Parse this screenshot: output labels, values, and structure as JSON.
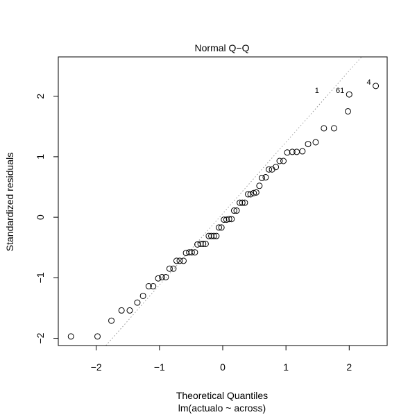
{
  "chart_data": {
    "type": "scatter",
    "title": "Normal Q−Q",
    "xlabel": "Theoretical Quantiles",
    "subtitle": "lm(actualo ~ across)",
    "ylabel": "Standardized residuals",
    "xlim": [
      -2.6,
      2.6
    ],
    "ylim": [
      -2.12,
      2.65
    ],
    "xticks": [
      -2,
      -1,
      0,
      1,
      2
    ],
    "xtick_labels": [
      "−2",
      "−1",
      "0",
      "1",
      "2"
    ],
    "yticks": [
      -2,
      -1,
      0,
      1,
      2
    ],
    "ytick_labels": [
      "−2",
      "−1",
      "0",
      "1",
      "2"
    ],
    "grid": false,
    "reference_line": {
      "slope": 1.18,
      "intercept": 0.06,
      "style": "dotted",
      "color": "#999999"
    },
    "points": [
      {
        "x": -2.4,
        "y": -1.97
      },
      {
        "x": -1.98,
        "y": -1.97
      },
      {
        "x": -1.76,
        "y": -1.71
      },
      {
        "x": -1.6,
        "y": -1.54
      },
      {
        "x": -1.47,
        "y": -1.54
      },
      {
        "x": -1.35,
        "y": -1.41
      },
      {
        "x": -1.26,
        "y": -1.3
      },
      {
        "x": -1.17,
        "y": -1.14
      },
      {
        "x": -1.1,
        "y": -1.14
      },
      {
        "x": -1.02,
        "y": -1.01
      },
      {
        "x": -0.96,
        "y": -0.99
      },
      {
        "x": -0.9,
        "y": -0.99
      },
      {
        "x": -0.84,
        "y": -0.85
      },
      {
        "x": -0.78,
        "y": -0.85
      },
      {
        "x": -0.73,
        "y": -0.72
      },
      {
        "x": -0.68,
        "y": -0.72
      },
      {
        "x": -0.62,
        "y": -0.72
      },
      {
        "x": -0.58,
        "y": -0.59
      },
      {
        "x": -0.53,
        "y": -0.58
      },
      {
        "x": -0.49,
        "y": -0.58
      },
      {
        "x": -0.44,
        "y": -0.58
      },
      {
        "x": -0.4,
        "y": -0.45
      },
      {
        "x": -0.35,
        "y": -0.44
      },
      {
        "x": -0.31,
        "y": -0.44
      },
      {
        "x": -0.27,
        "y": -0.44
      },
      {
        "x": -0.22,
        "y": -0.31
      },
      {
        "x": -0.18,
        "y": -0.31
      },
      {
        "x": -0.14,
        "y": -0.31
      },
      {
        "x": -0.1,
        "y": -0.31
      },
      {
        "x": -0.06,
        "y": -0.17
      },
      {
        "x": -0.02,
        "y": -0.17
      },
      {
        "x": 0.02,
        "y": -0.04
      },
      {
        "x": 0.06,
        "y": -0.04
      },
      {
        "x": 0.1,
        "y": -0.03
      },
      {
        "x": 0.14,
        "y": -0.03
      },
      {
        "x": 0.18,
        "y": 0.11
      },
      {
        "x": 0.22,
        "y": 0.11
      },
      {
        "x": 0.27,
        "y": 0.24
      },
      {
        "x": 0.31,
        "y": 0.24
      },
      {
        "x": 0.35,
        "y": 0.24
      },
      {
        "x": 0.4,
        "y": 0.38
      },
      {
        "x": 0.44,
        "y": 0.38
      },
      {
        "x": 0.49,
        "y": 0.4
      },
      {
        "x": 0.53,
        "y": 0.41
      },
      {
        "x": 0.58,
        "y": 0.52
      },
      {
        "x": 0.62,
        "y": 0.65
      },
      {
        "x": 0.68,
        "y": 0.66
      },
      {
        "x": 0.73,
        "y": 0.79
      },
      {
        "x": 0.78,
        "y": 0.79
      },
      {
        "x": 0.84,
        "y": 0.83
      },
      {
        "x": 0.9,
        "y": 0.93
      },
      {
        "x": 0.96,
        "y": 0.93
      },
      {
        "x": 1.02,
        "y": 1.07
      },
      {
        "x": 1.1,
        "y": 1.08
      },
      {
        "x": 1.17,
        "y": 1.08
      },
      {
        "x": 1.26,
        "y": 1.09
      },
      {
        "x": 1.35,
        "y": 1.21
      },
      {
        "x": 1.47,
        "y": 1.24
      },
      {
        "x": 1.6,
        "y": 1.47
      },
      {
        "x": 1.76,
        "y": 1.47
      },
      {
        "x": 1.98,
        "y": 1.75
      },
      {
        "x": 2.0,
        "y": 2.03
      },
      {
        "x": 2.42,
        "y": 2.17
      }
    ],
    "annotations": [
      {
        "text": "1",
        "x": 1.6,
        "y": 2.03
      },
      {
        "text": "61",
        "x": 2.0,
        "y": 2.03
      },
      {
        "text": "4",
        "x": 2.42,
        "y": 2.17
      }
    ]
  }
}
